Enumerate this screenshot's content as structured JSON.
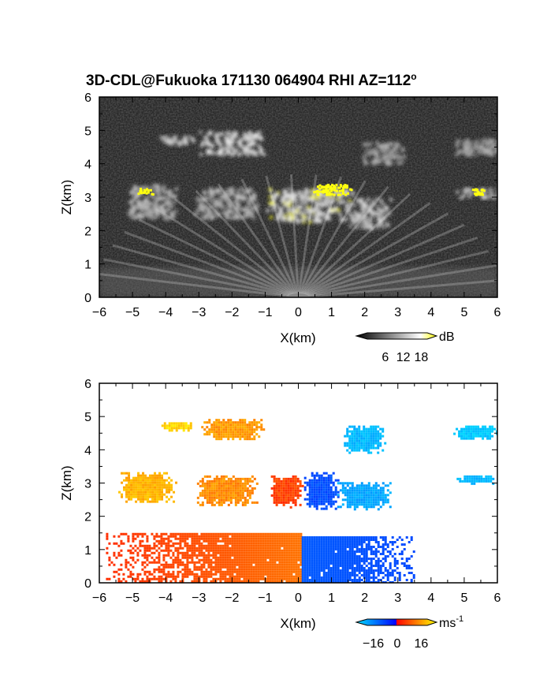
{
  "figure": {
    "title": "3D-CDL@Fukuoka 171130 064904 RHI AZ=112",
    "title_superscript": "o"
  },
  "chart_data": [
    {
      "type": "heatmap",
      "name": "backscatter-intensity",
      "xlabel": "X(km)",
      "ylabel": "Z(km)",
      "xlim": [
        -6,
        6
      ],
      "ylim": [
        0,
        6
      ],
      "xticks": [
        -6,
        -5,
        -4,
        -3,
        -2,
        -1,
        0,
        1,
        2,
        3,
        4,
        5,
        6
      ],
      "yticks": [
        0,
        1,
        2,
        3,
        4,
        5,
        6
      ],
      "colorbar": {
        "unit": "dB",
        "ticks": [
          6,
          12,
          18
        ],
        "range": [
          0,
          20
        ],
        "colormap": "greyscale-to-yellow"
      },
      "cloud_layers": [
        {
          "x_range": [
            -4.2,
            -3.1
          ],
          "z_range": [
            4.6,
            4.9
          ],
          "intensity": 12
        },
        {
          "x_range": [
            -3.0,
            -1.0
          ],
          "z_range": [
            4.3,
            5.0
          ],
          "intensity": 14
        },
        {
          "x_range": [
            1.9,
            3.2
          ],
          "z_range": [
            4.0,
            4.7
          ],
          "intensity": 10
        },
        {
          "x_range": [
            4.6,
            6.0
          ],
          "z_range": [
            4.3,
            4.8
          ],
          "intensity": 10
        },
        {
          "x_range": [
            -5.2,
            -3.7
          ],
          "z_range": [
            2.4,
            3.4
          ],
          "intensity": 11
        },
        {
          "x_range": [
            -3.2,
            -1.2
          ],
          "z_range": [
            2.4,
            3.3
          ],
          "intensity": 11
        },
        {
          "x_range": [
            -1.0,
            1.6
          ],
          "z_range": [
            2.3,
            3.3
          ],
          "intensity": 15
        },
        {
          "x_range": [
            1.4,
            2.8
          ],
          "z_range": [
            2.1,
            3.0
          ],
          "intensity": 13
        },
        {
          "x_range": [
            4.7,
            6.0
          ],
          "z_range": [
            3.0,
            3.3
          ],
          "intensity": 12
        }
      ],
      "strong_echo_highlights": [
        {
          "x_range": [
            0.4,
            1.6
          ],
          "z_range": [
            3.1,
            3.4
          ],
          "intensity": 18
        },
        {
          "x_range": [
            -4.9,
            -4.4
          ],
          "z_range": [
            3.1,
            3.3
          ],
          "intensity": 18
        },
        {
          "x_range": [
            5.2,
            5.6
          ],
          "z_range": [
            3.1,
            3.3
          ],
          "intensity": 18
        }
      ],
      "boundary_layer": {
        "x_range": [
          -6,
          6
        ],
        "z_top": 0.9,
        "intensity": 9
      }
    },
    {
      "type": "heatmap",
      "name": "radial-velocity",
      "xlabel": "X(km)",
      "ylabel": "Z(km)",
      "xlim": [
        -6,
        6
      ],
      "ylim": [
        0,
        6
      ],
      "xticks": [
        -6,
        -5,
        -4,
        -3,
        -2,
        -1,
        0,
        1,
        2,
        3,
        4,
        5,
        6
      ],
      "yticks": [
        0,
        1,
        2,
        3,
        4,
        5,
        6
      ],
      "colorbar": {
        "unit": "ms",
        "unit_superscript": "-1",
        "ticks": [
          -16,
          0,
          16
        ],
        "range": [
          -20,
          20
        ],
        "colormap": "cyan-blue-red-yellow"
      },
      "regions": [
        {
          "x_range": [
            -4.2,
            -3.1
          ],
          "z_range": [
            4.6,
            4.9
          ],
          "velocity": 17
        },
        {
          "x_range": [
            -3.0,
            -1.0
          ],
          "z_range": [
            4.3,
            5.0
          ],
          "velocity": 12
        },
        {
          "x_range": [
            1.3,
            2.6
          ],
          "z_range": [
            3.9,
            4.8
          ],
          "velocity": -16
        },
        {
          "x_range": [
            4.6,
            6.0
          ],
          "z_range": [
            4.3,
            4.8
          ],
          "velocity": -18
        },
        {
          "x_range": [
            -5.5,
            -3.7
          ],
          "z_range": [
            2.4,
            3.4
          ],
          "velocity": 14
        },
        {
          "x_range": [
            -3.2,
            -1.2
          ],
          "z_range": [
            2.3,
            3.3
          ],
          "velocity": 11
        },
        {
          "x_range": [
            -0.9,
            0.1
          ],
          "z_range": [
            2.3,
            3.3
          ],
          "velocity": 5
        },
        {
          "x_range": [
            0.1,
            1.2
          ],
          "z_range": [
            2.2,
            3.4
          ],
          "velocity": -4
        },
        {
          "x_range": [
            1.1,
            2.8
          ],
          "z_range": [
            2.2,
            3.1
          ],
          "velocity": -14
        },
        {
          "x_range": [
            4.7,
            6.0
          ],
          "z_range": [
            3.0,
            3.3
          ],
          "velocity": -16
        },
        {
          "x_range": [
            -5.8,
            0.1
          ],
          "z_range": [
            0.0,
            1.5
          ],
          "velocity": 6
        },
        {
          "x_range": [
            0.1,
            3.5
          ],
          "z_range": [
            0.0,
            1.4
          ],
          "velocity": -3
        }
      ]
    }
  ]
}
